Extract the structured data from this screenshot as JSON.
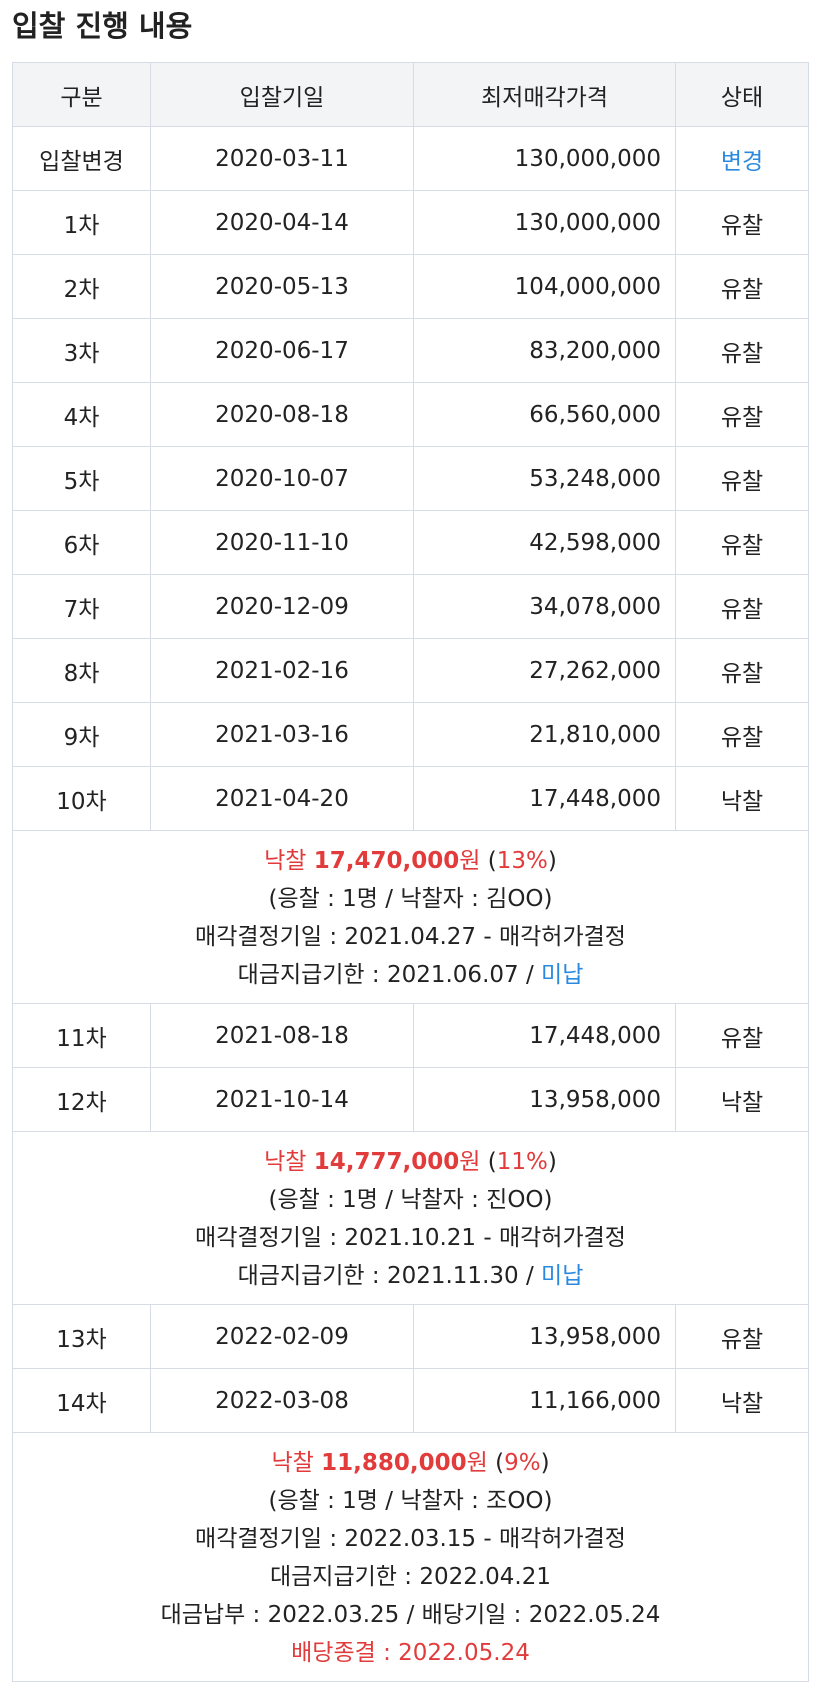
{
  "title": "입찰 진행 내용",
  "colors": {
    "blue": "#2b8ae0",
    "red": "#e23b3b"
  },
  "header": [
    "구분",
    "입찰기일",
    "최저매각가격",
    "상태"
  ],
  "rows": [
    {
      "round": "입찰변경",
      "date": "2020-03-11",
      "price": "130,000,000",
      "status": "변경"
    },
    {
      "round": "1차",
      "date": "2020-04-14",
      "price": "130,000,000",
      "status": "유찰"
    },
    {
      "round": "2차",
      "date": "2020-05-13",
      "price": "104,000,000",
      "status": "유찰"
    },
    {
      "round": "3차",
      "date": "2020-06-17",
      "price": "83,200,000",
      "status": "유찰"
    },
    {
      "round": "4차",
      "date": "2020-08-18",
      "price": "66,560,000",
      "status": "유찰"
    },
    {
      "round": "5차",
      "date": "2020-10-07",
      "price": "53,248,000",
      "status": "유찰"
    },
    {
      "round": "6차",
      "date": "2020-11-10",
      "price": "42,598,000",
      "status": "유찰"
    },
    {
      "round": "7차",
      "date": "2020-12-09",
      "price": "34,078,000",
      "status": "유찰"
    },
    {
      "round": "8차",
      "date": "2021-02-16",
      "price": "27,262,000",
      "status": "유찰"
    },
    {
      "round": "9차",
      "date": "2021-03-16",
      "price": "21,810,000",
      "status": "유찰"
    },
    {
      "round": "10차",
      "date": "2021-04-20",
      "price": "17,448,000",
      "status": "낙찰"
    },
    {
      "round": "11차",
      "date": "2021-08-18",
      "price": "17,448,000",
      "status": "유찰"
    },
    {
      "round": "12차",
      "date": "2021-10-14",
      "price": "13,958,000",
      "status": "낙찰"
    },
    {
      "round": "13차",
      "date": "2022-02-09",
      "price": "13,958,000",
      "status": "유찰"
    },
    {
      "round": "14차",
      "date": "2022-03-08",
      "price": "11,166,000",
      "status": "낙찰"
    }
  ],
  "results": [
    {
      "label": "낙찰",
      "amount": "17,470,000",
      "unit": "원",
      "percent": "13%",
      "bidders": "(응찰 : 1명 / 낙찰자 : 김OO)",
      "decision": "매각결정기일 : 2021.04.27 - 매각허가결정",
      "deadline": "대금지급기한 : 2021.06.07 / ",
      "deadline_status": "미납"
    },
    {
      "label": "낙찰",
      "amount": "14,777,000",
      "unit": "원",
      "percent": "11%",
      "bidders": "(응찰 : 1명 / 낙찰자 : 진OO)",
      "decision": "매각결정기일 : 2021.10.21 - 매각허가결정",
      "deadline": "대금지급기한 : 2021.11.30 / ",
      "deadline_status": "미납"
    },
    {
      "label": "낙찰",
      "amount": "11,880,000",
      "unit": "원",
      "percent": "9%",
      "bidders": "(응찰 : 1명 / 낙찰자 : 조OO)",
      "decision": "매각결정기일 : 2022.03.15 - 매각허가결정",
      "deadline": "대금지급기한 : 2022.04.21",
      "payment": "대금납부 : 2022.03.25 / 배당기일 : 2022.05.24",
      "dividend_end": "배당종결 : 2022.05.24"
    }
  ]
}
